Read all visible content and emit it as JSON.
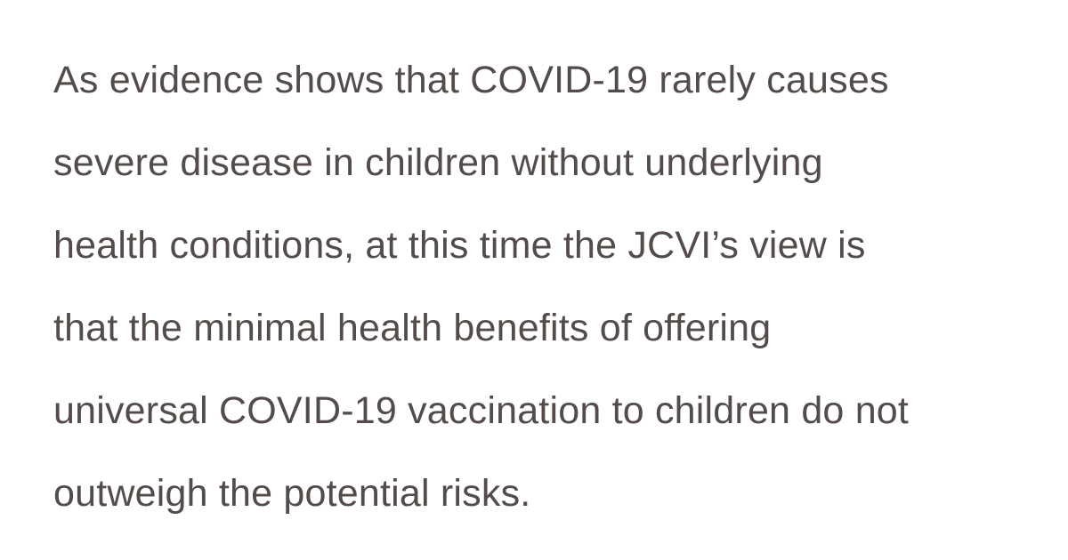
{
  "quote": {
    "lines": [
      "As evidence shows that COVID-19 rarely causes",
      "severe disease in children without underlying",
      "health conditions, at this time the JCVI’s view is",
      "that the minimal health benefits of offering",
      "universal COVID-19 vaccination to children do not",
      "outweigh the potential risks."
    ],
    "text_color": "#534c4a",
    "background_color": "#ffffff"
  }
}
